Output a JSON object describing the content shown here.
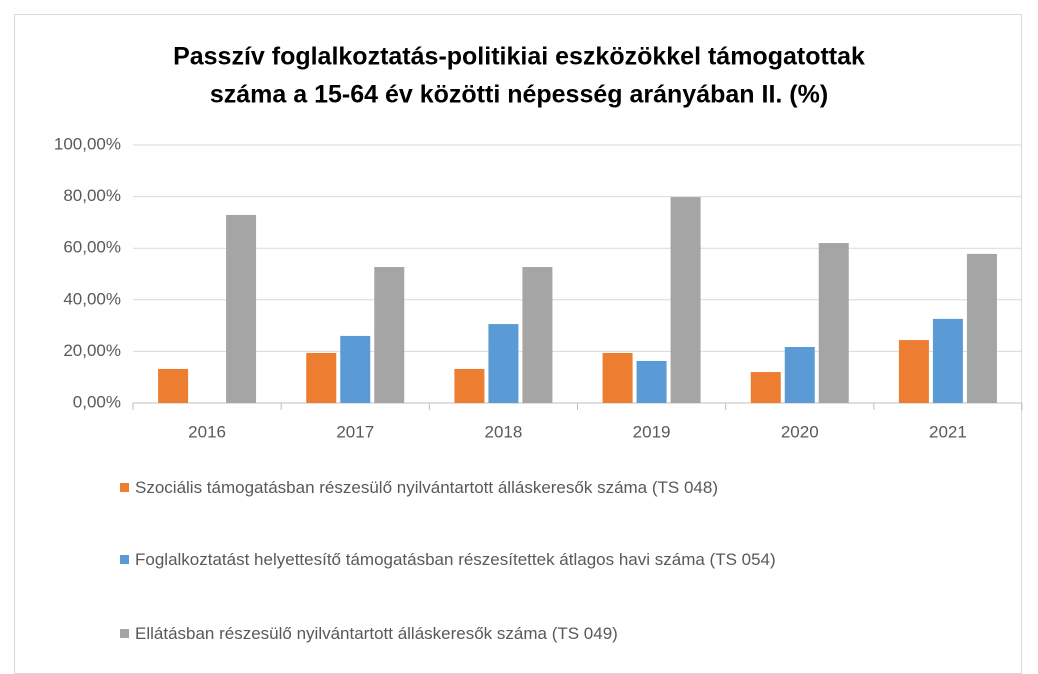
{
  "chart_data": {
    "type": "bar",
    "title": [
      "Passzív foglalkoztatás-politikiai eszközökkel támogatottak",
      "száma a 15-64 év közötti népesség  arányában II. (%)"
    ],
    "categories": [
      "2016",
      "2017",
      "2018",
      "2019",
      "2020",
      "2021"
    ],
    "series": [
      {
        "name": "Szociális támogatásban részesülő nyilvántartott álláskeresők száma (TS 048)",
        "color": "#ed7d31",
        "values": [
          13.2,
          19.4,
          13.2,
          19.4,
          12.0,
          24.4
        ]
      },
      {
        "name": "Foglalkoztatást helyettesítő támogatásban részesítettek átlagos havi száma (TS 054)",
        "color": "#5b9bd5",
        "values": [
          null,
          26.0,
          30.6,
          16.3,
          21.7,
          32.6
        ]
      },
      {
        "name": "Ellátásban részesülő nyilvántartott álláskeresők száma (TS 049)",
        "color": "#a5a5a5",
        "values": [
          72.9,
          52.7,
          52.7,
          79.8,
          62.0,
          57.8
        ]
      }
    ],
    "ylim": [
      0,
      100
    ],
    "yticks": [
      {
        "value": 0,
        "label": "0,00%"
      },
      {
        "value": 20,
        "label": "20,00%"
      },
      {
        "value": 40,
        "label": "40,00%"
      },
      {
        "value": 60,
        "label": "60,00%"
      },
      {
        "value": 80,
        "label": "80,00%"
      },
      {
        "value": 100,
        "label": "100,00%"
      }
    ],
    "grid": true,
    "legend": "bottom"
  }
}
